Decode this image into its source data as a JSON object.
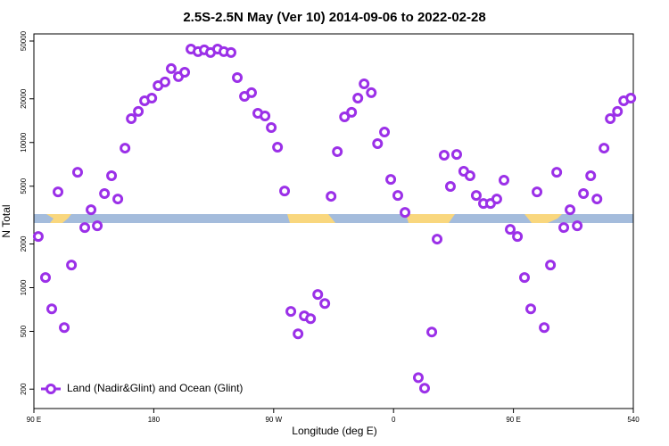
{
  "chart_data": {
    "type": "scatter",
    "log_y": true,
    "title": "2.5S-2.5N May (Ver 10)   2014-09-06 to 2022-02-28",
    "xlabel": "Longitude (deg E)",
    "ylabel": "N Total",
    "legend_position": "bottom-left",
    "xlim": [
      90,
      540
    ],
    "xticks": [
      {
        "value": 90,
        "label": "90 E"
      },
      180,
      {
        "value": 270,
        "label": "90 W"
      },
      {
        "value": 360,
        "label": "0"
      },
      {
        "value": 450,
        "label": "90 E"
      },
      540
    ],
    "ylim": [
      147,
      56000
    ],
    "yticks": [
      200,
      500,
      1000,
      2000,
      5000,
      10000,
      20000,
      50000
    ],
    "series": [
      {
        "name": "Land (Nadir&Glint) and Ocean (Glint)",
        "color": "#9b30e8",
        "x": [
          93.3,
          98.7,
          103.4,
          108.1,
          112.8,
          118.2,
          122.8,
          128.2,
          132.9,
          137.6,
          143.0,
          148.3,
          153.0,
          158.4,
          163.1,
          168.4,
          173.1,
          178.5,
          183.2,
          188.4,
          193.1,
          198.5,
          203.2,
          207.9,
          213.2,
          217.9,
          222.6,
          227.9,
          232.6,
          238.0,
          242.7,
          248.1,
          253.4,
          258.1,
          263.5,
          268.2,
          272.9,
          278.2,
          282.9,
          288.3,
          293.0,
          297.7,
          303.1,
          308.4,
          313.1,
          317.8,
          323.2,
          328.5,
          333.2,
          337.9,
          343.3,
          348.0,
          353.2,
          357.9,
          363.2,
          368.6,
          378.6,
          383.3,
          388.7,
          392.7,
          398.0,
          402.7,
          407.4,
          412.7,
          417.4,
          422.1,
          427.5,
          432.8,
          437.5,
          442.9,
          447.6,
          453.0,
          458.3,
          463.0,
          467.7,
          473.1,
          477.8,
          482.5,
          487.8,
          492.5,
          497.9,
          502.6,
          508.0,
          512.7,
          518.0,
          522.7,
          528.1,
          532.8,
          538.1
        ],
        "values": [
          2250,
          1175,
          715,
          4570,
          531,
          1432,
          6240,
          2594,
          3445,
          2670,
          4446,
          5900,
          4083,
          9146,
          14600,
          16370,
          19370,
          20230,
          24660,
          26120,
          32280,
          28440,
          30480,
          44060,
          42270,
          43450,
          41690,
          44060,
          42270,
          41690,
          28000,
          20800,
          22030,
          15890,
          15240,
          12680,
          9290,
          4630,
          686,
          481,
          639,
          612,
          897,
          778,
          4260,
          8650,
          15030,
          16140,
          20230,
          25360,
          22030,
          9820,
          11800,
          5570,
          4320,
          3300,
          240,
          203,
          495,
          2160,
          8170,
          4980,
          8280,
          6340,
          5900,
          4320,
          3800,
          3800,
          4083,
          5500,
          2520,
          2250,
          1175,
          715,
          4570,
          531,
          1432,
          6240,
          2594,
          3445,
          2670,
          4446,
          5900,
          4083,
          9146,
          14600,
          16370,
          19370,
          20230
        ]
      }
    ]
  }
}
